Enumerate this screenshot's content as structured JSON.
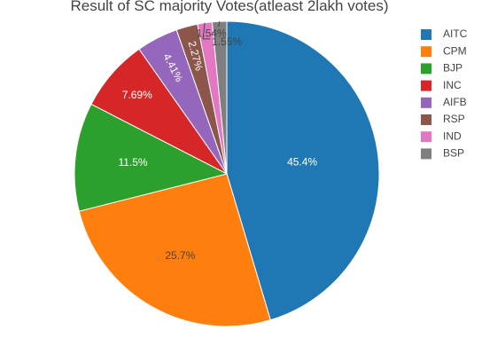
{
  "chart_data": {
    "type": "pie",
    "title": "Result of SC majority Votes(atleast 2lakh votes)",
    "labels": [
      "AITC",
      "CPM",
      "BJP",
      "INC",
      "AIFB",
      "RSP",
      "IND",
      "BSP"
    ],
    "values": [
      45.4,
      25.7,
      11.5,
      7.69,
      4.41,
      2.27,
      1.55,
      1.54
    ],
    "value_labels": [
      "45.4%",
      "25.7%",
      "11.5%",
      "7.69%",
      "4.41%",
      "2.27%",
      "1.55%",
      "1.54%"
    ],
    "colors": [
      "#1f77b4",
      "#ff7f0e",
      "#2ca02c",
      "#d62728",
      "#9467bd",
      "#8c564b",
      "#e377c2",
      "#7f7f7f"
    ],
    "label_text_colors": [
      "#ffffff",
      "#444444",
      "#ffffff",
      "#ffffff",
      "#ffffff",
      "#ffffff",
      "#ffffff",
      "#ffffff"
    ],
    "direction": "clockwise",
    "start": "top",
    "legend_position": "top-right"
  }
}
